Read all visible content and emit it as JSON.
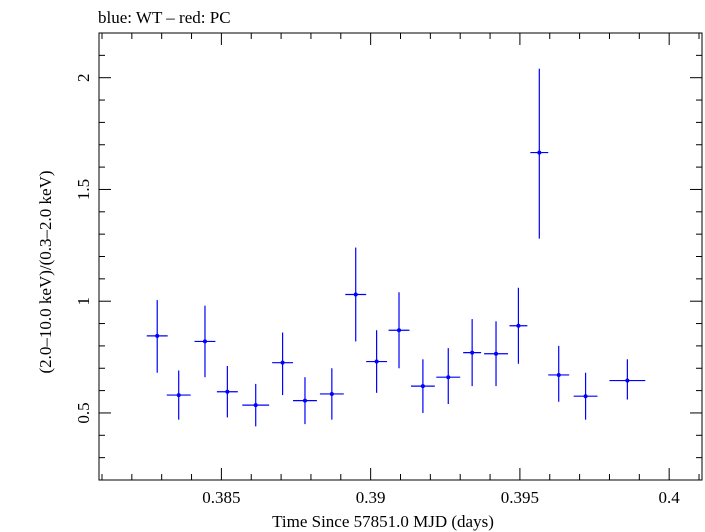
{
  "chart_data": {
    "type": "scatter",
    "title": "blue: WT – red: PC",
    "xlabel": "Time Since 57851.0 MJD (days)",
    "ylabel": "(2.0–10.0 keV)/(0.3–2.0 keV)",
    "xlim": [
      0.3809,
      0.4011
    ],
    "ylim": [
      0.2,
      2.2
    ],
    "x_ticks": [
      0.385,
      0.39,
      0.395,
      0.4
    ],
    "x_tick_labels": [
      "0.385",
      "0.39",
      "0.395",
      "0.4"
    ],
    "y_ticks": [
      0.5,
      1,
      1.5,
      2
    ],
    "y_tick_labels": [
      "0.5",
      "1",
      "1.5",
      "2"
    ],
    "grid": false,
    "series": [
      {
        "color": "#0000ff",
        "points": [
          {
            "x": 0.38285,
            "y": 0.845,
            "xerr": 0.00035,
            "ylo": 0.68,
            "yhi": 1.005
          },
          {
            "x": 0.38357,
            "y": 0.58,
            "xerr": 0.0004,
            "ylo": 0.47,
            "yhi": 0.69
          },
          {
            "x": 0.38445,
            "y": 0.82,
            "xerr": 0.00035,
            "ylo": 0.66,
            "yhi": 0.98
          },
          {
            "x": 0.3852,
            "y": 0.595,
            "xerr": 0.00035,
            "ylo": 0.48,
            "yhi": 0.71
          },
          {
            "x": 0.38615,
            "y": 0.535,
            "xerr": 0.00045,
            "ylo": 0.44,
            "yhi": 0.63
          },
          {
            "x": 0.38705,
            "y": 0.725,
            "xerr": 0.00035,
            "ylo": 0.58,
            "yhi": 0.86
          },
          {
            "x": 0.3878,
            "y": 0.555,
            "xerr": 0.0004,
            "ylo": 0.45,
            "yhi": 0.66
          },
          {
            "x": 0.3887,
            "y": 0.585,
            "xerr": 0.0004,
            "ylo": 0.47,
            "yhi": 0.7
          },
          {
            "x": 0.3895,
            "y": 1.03,
            "xerr": 0.00035,
            "ylo": 0.82,
            "yhi": 1.24
          },
          {
            "x": 0.3902,
            "y": 0.73,
            "xerr": 0.00035,
            "ylo": 0.59,
            "yhi": 0.87
          },
          {
            "x": 0.39095,
            "y": 0.87,
            "xerr": 0.00035,
            "ylo": 0.7,
            "yhi": 1.04
          },
          {
            "x": 0.39175,
            "y": 0.62,
            "xerr": 0.0004,
            "ylo": 0.5,
            "yhi": 0.74
          },
          {
            "x": 0.3926,
            "y": 0.66,
            "xerr": 0.0004,
            "ylo": 0.54,
            "yhi": 0.79
          },
          {
            "x": 0.3934,
            "y": 0.77,
            "xerr": 0.0003,
            "ylo": 0.62,
            "yhi": 0.92
          },
          {
            "x": 0.3942,
            "y": 0.765,
            "xerr": 0.0004,
            "ylo": 0.62,
            "yhi": 0.91
          },
          {
            "x": 0.39495,
            "y": 0.89,
            "xerr": 0.0003,
            "ylo": 0.72,
            "yhi": 1.06
          },
          {
            "x": 0.39565,
            "y": 1.665,
            "xerr": 0.0003,
            "ylo": 1.28,
            "yhi": 2.04
          },
          {
            "x": 0.3963,
            "y": 0.67,
            "xerr": 0.00035,
            "ylo": 0.55,
            "yhi": 0.8
          },
          {
            "x": 0.3972,
            "y": 0.575,
            "xerr": 0.0004,
            "ylo": 0.47,
            "yhi": 0.68
          },
          {
            "x": 0.3986,
            "y": 0.645,
            "xerr": 0.0006,
            "ylo": 0.56,
            "yhi": 0.74
          }
        ]
      }
    ]
  }
}
